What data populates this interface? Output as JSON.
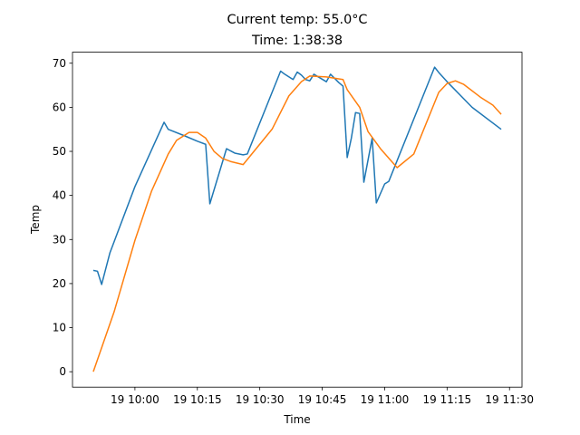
{
  "chart_data": {
    "type": "line",
    "title": "Current temp: 55.0°C",
    "subtitle": "Time: 1:38:38",
    "x_label": "Time",
    "y_label": "Temp",
    "xlim": [
      "19 09:45",
      "19 11:33"
    ],
    "xticks": [
      "19 10:00",
      "19 10:15",
      "19 10:30",
      "19 10:45",
      "19 11:00",
      "19 11:15",
      "19 11:30"
    ],
    "ylim": [
      -3.5,
      72.5
    ],
    "yticks": [
      0,
      10,
      20,
      30,
      40,
      50,
      60,
      70
    ],
    "grid": false,
    "series": [
      {
        "color": "#1f77b4",
        "x": [
          "19 09:50",
          "19 09:51",
          "19 09:52",
          "19 09:54",
          "19 10:00",
          "19 10:07",
          "19 10:08",
          "19 10:12",
          "19 10:15",
          "19 10:17",
          "19 10:18",
          "19 10:22",
          "19 10:24",
          "19 10:26",
          "19 10:27",
          "19 10:35",
          "19 10:36",
          "19 10:38",
          "19 10:39",
          "19 10:40",
          "19 10:41",
          "19 10:42",
          "19 10:43",
          "19 10:46",
          "19 10:47",
          "19 10:49",
          "19 10:50",
          "19 10:51",
          "19 10:52",
          "19 10:53",
          "19 10:54",
          "19 10:55",
          "19 10:57",
          "19 10:58",
          "19 11:00",
          "19 11:01",
          "19 11:12",
          "19 11:13",
          "19 11:15",
          "19 11:21",
          "19 11:28"
        ],
        "values": [
          23.0,
          22.8,
          19.8,
          27,
          42,
          56.6,
          55,
          53.5,
          52.3,
          51.6,
          38.1,
          50.6,
          49.6,
          49.2,
          49.4,
          68.2,
          67.5,
          66.3,
          68,
          67.3,
          66.3,
          66,
          67.5,
          65.8,
          67.5,
          65.6,
          64.8,
          48.6,
          53,
          58.8,
          58.6,
          43,
          53,
          38.3,
          42.6,
          43.2,
          69.1,
          67.9,
          65.8,
          60,
          55
        ]
      },
      {
        "color": "#ff7f0e",
        "x": [
          "19 09:50",
          "19 09:55",
          "19 10:00",
          "19 10:04",
          "19 10:08",
          "19 10:10",
          "19 10:13",
          "19 10:15",
          "19 10:17",
          "19 10:19",
          "19 10:21",
          "19 10:23",
          "19 10:26",
          "19 10:33",
          "19 10:37",
          "19 10:40",
          "19 10:42",
          "19 10:46",
          "19 10:50",
          "19 10:51",
          "19 10:54",
          "19 10:56",
          "19 10:59",
          "19 11:03",
          "19 11:07",
          "19 11:13",
          "19 11:15",
          "19 11:17",
          "19 11:19",
          "19 11:23",
          "19 11:26",
          "19 11:28"
        ],
        "values": [
          0,
          13.6,
          29.8,
          41,
          49.4,
          52.5,
          54.3,
          54.3,
          53,
          50,
          48.4,
          47.7,
          47,
          55.1,
          62.6,
          65.8,
          67.1,
          66.9,
          66.3,
          64,
          60,
          54.5,
          50.6,
          46.3,
          49.4,
          63.4,
          65.4,
          66,
          65.2,
          62.3,
          60.5,
          58.4
        ]
      }
    ]
  }
}
